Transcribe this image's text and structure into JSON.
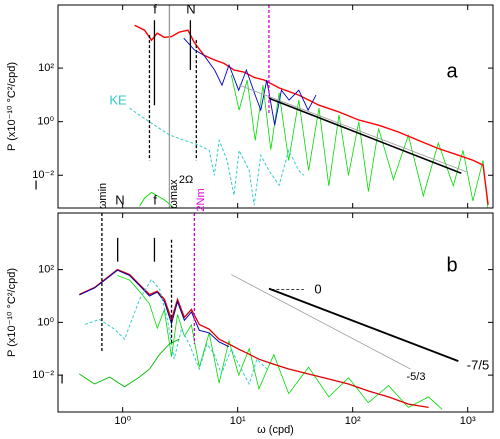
{
  "chart_data": [
    {
      "type": "line",
      "log_x": true,
      "log_y": true,
      "ylabel": "P (x10⁻¹⁰ °C²/cpd)",
      "xlim": [
        0.274,
        1660
      ],
      "ylim": [
        0.0006,
        22600
      ],
      "xticks": [
        1,
        10,
        100,
        1000
      ],
      "yticks": [
        {
          "value": 100,
          "label": "10²"
        },
        {
          "value": 1,
          "label": "10⁰"
        },
        {
          "value": 0.01,
          "label": "10⁻²"
        }
      ],
      "annotations": [
        "f",
        "N",
        "a",
        "KE",
        "I"
      ],
      "series": [
        {
          "color": "#00dd00",
          "width": 0.8,
          "dash": false,
          "x": [
            8.8,
            10.3,
            12.1,
            14.2,
            16.6,
            19.4,
            22.9,
            27.8,
            34,
            41.4,
            51,
            62,
            76,
            92,
            113,
            137,
            168,
            226,
            305,
            411,
            555,
            750,
            910,
            1110,
            1360,
            1500
          ],
          "values": [
            55,
            2.7,
            36,
            0.2,
            23,
            0.09,
            12,
            0.036,
            6.4,
            0.015,
            3.2,
            0.004,
            1.8,
            0.01,
            1.0,
            0.0025,
            0.55,
            0.007,
            0.31,
            0.0017,
            0.16,
            0.004,
            0.085,
            0.0011,
            0.036,
            0.0006
          ]
        },
        {
          "color": "#ff0000",
          "width": 1.4,
          "dash": false,
          "x": [
            1.27,
            1.55,
            1.78,
            2.0,
            2.3,
            2.66,
            3.1,
            3.7,
            4.2,
            5.1,
            6.3,
            7.6,
            9.3,
            11.4,
            13.9,
            17,
            23,
            34,
            51,
            76,
            113,
            168,
            250,
            373,
            555,
            828,
            1116,
            1362,
            1505
          ],
          "values": [
            4000,
            2600,
            1100,
            2000,
            1400,
            1500,
            2200,
            2600,
            900,
            300,
            200,
            150,
            85,
            70,
            45,
            36,
            18,
            9.8,
            4.1,
            2.3,
            1.15,
            0.74,
            0.41,
            0.2,
            0.1,
            0.056,
            0.036,
            0.024,
            0.0008
          ]
        },
        {
          "color": "#0000cc",
          "width": 0.9,
          "dash": false,
          "x": [
            3.4,
            4.2,
            5.1,
            6.3,
            7.3,
            8.4,
            10.2,
            11.9,
            14.2,
            15.9,
            17.9,
            21,
            24,
            28,
            34,
            41,
            48
          ],
          "values": [
            1300,
            480,
            300,
            85,
            23,
            130,
            15,
            85,
            9.8,
            2.7,
            36,
            0.74,
            15,
            6.4,
            15,
            2.7,
            9.8
          ]
        },
        {
          "color": "#33cccc",
          "width": 1,
          "dash": true,
          "x": [
            1.15,
            1.4,
            1.89,
            2.55,
            3.44,
            4.64,
            5.66,
            6.26,
            6.91,
            8.1,
            9.3,
            10.3,
            12.6,
            13.9,
            15.9,
            18.7,
            22.9,
            27.8,
            34,
            37.6
          ],
          "values": [
            3.2,
            1.75,
            0.74,
            0.32,
            0.2,
            0.13,
            0.085,
            0.01,
            0.2,
            0.036,
            0.0018,
            0.085,
            0.015,
            0.00076,
            0.056,
            0.015,
            0.0043,
            0.085,
            0.015,
            0.01
          ]
        },
        {
          "color": "#00dd00",
          "width": 0.9,
          "dash": false,
          "x": [
            1.4,
            1.55,
            1.78,
            2.3,
            2.8
          ],
          "values": [
            0.0007,
            0.0014,
            0.0023,
            0.0012,
            0.0006
          ]
        }
      ],
      "vlines": [
        {
          "x": 1.71,
          "y": [
            1700,
            0.036
          ],
          "color": "#000000",
          "dash": true
        },
        {
          "x": 1.89,
          "y": [
            6100,
            4.1
          ],
          "color": "#000000",
          "dash": false
        },
        {
          "x": 2.55,
          "y": [
            22600,
            0.0006
          ],
          "color": "#999999",
          "dash": false
        },
        {
          "x": 3.88,
          "y": [
            6100,
            85
          ],
          "color": "#000000",
          "dash": false
        },
        {
          "x": 4.37,
          "y": [
            1100,
            0.036
          ],
          "color": "#000000",
          "dash": true
        },
        {
          "x": 18.7,
          "y": [
            22600,
            1.75
          ],
          "color": "#dd00dd",
          "dash": true
        }
      ],
      "lines": [
        {
          "x": [
            10.3,
            1000
          ],
          "y": [
            23,
            0.013
          ],
          "color": "#999999",
          "width": 0.8
        },
        {
          "x": [
            18.7,
            880
          ],
          "y": [
            7.5,
            0.0119
          ],
          "color": "#000000",
          "width": 1.6
        }
      ]
    },
    {
      "type": "line",
      "log_x": true,
      "log_y": true,
      "ylabel": "P (x10⁻¹⁰ °C²/cpd)",
      "xlabel": "ω (cpd)",
      "xlim": [
        0.274,
        1660
      ],
      "ylim": [
        0.0004,
        14000
      ],
      "xticks": [
        {
          "value": 1,
          "label": "10⁰"
        },
        {
          "value": 10,
          "label": "10¹"
        },
        {
          "value": 100,
          "label": "10²"
        },
        {
          "value": 1000,
          "label": "10³"
        }
      ],
      "yticks": [
        {
          "value": 100,
          "label": "10²"
        },
        {
          "value": 1,
          "label": "10⁰"
        },
        {
          "value": 0.01,
          "label": "10⁻²"
        }
      ],
      "annotations": [
        "ωmin",
        "N",
        "f",
        "ωmax",
        "2Ω",
        "2Nm",
        "b",
        "0",
        "-5/3",
        "-7/5",
        "I"
      ],
      "series": [
        {
          "color": "#00dd00",
          "width": 0.8,
          "dash": false,
          "x": [
            0.9,
            1.15,
            1.4,
            1.71,
            2.0,
            2.3,
            2.66,
            3.0,
            3.44,
            3.96,
            4.64,
            5.66,
            6.9,
            8.4,
            10.2,
            12.6,
            15.3,
            20.6,
            27.8,
            41.4,
            62,
            92,
            137,
            205,
            305,
            457,
            600
          ],
          "values": [
            60,
            40,
            15,
            5,
            0.6,
            3,
            0.05,
            2,
            0.3,
            0.8,
            0.02,
            0.4,
            0.005,
            0.2,
            0.01,
            0.1,
            0.003,
            0.06,
            0.002,
            0.02,
            0.0015,
            0.008,
            0.0009,
            0.004,
            0.0006,
            0.0015,
            0.0005
          ]
        },
        {
          "color": "#dd0000",
          "width": 1.3,
          "dash": false,
          "x": [
            0.42,
            0.57,
            0.7,
            0.9,
            1.15,
            1.4,
            1.71,
            2.0,
            2.31,
            2.66,
            3.0,
            3.44,
            3.96,
            4.64,
            5.66,
            6.9,
            8.4,
            10.2,
            12.6,
            15.3,
            20.6,
            27.8,
            41.4,
            62,
            92,
            137,
            205,
            305,
            457
          ],
          "values": [
            11.4,
            21,
            42,
            100,
            65,
            27,
            11.4,
            15,
            7.4,
            1.3,
            7.4,
            1.55,
            3.1,
            0.83,
            0.55,
            0.23,
            0.15,
            0.096,
            0.062,
            0.04,
            0.026,
            0.017,
            0.011,
            0.0071,
            0.0046,
            0.0025,
            0.0015,
            0.0008,
            0.0006
          ]
        },
        {
          "color": "#0000aa",
          "width": 1,
          "dash": false,
          "x": [
            0.42,
            0.57,
            0.7,
            0.9,
            1.15,
            1.4,
            1.71,
            2.0,
            2.31,
            2.66,
            3.0,
            3.44,
            3.96,
            4.64,
            5.66,
            6.9,
            8.4
          ],
          "values": [
            11,
            20,
            40,
            95,
            60,
            25,
            10,
            14,
            6,
            0.9,
            6,
            1.2,
            2.5,
            0.5,
            0.4,
            0.18,
            0.12
          ]
        },
        {
          "color": "#33cccc",
          "width": 1,
          "dash": true,
          "x": [
            0.47,
            0.63,
            0.85,
            1.04,
            1.4,
            1.78,
            2.1,
            2.45,
            2.8,
            3.24,
            3.8,
            4.64,
            5.4,
            6.26,
            7.2,
            8.8,
            10.2,
            12.6,
            14.7,
            18
          ],
          "values": [
            0.84,
            1.3,
            0.55,
            0.23,
            7.4,
            42,
            17.6,
            1.3,
            0.04,
            0.55,
            0.15,
            0.017,
            0.15,
            0.062,
            0.011,
            0.096,
            0.026,
            0.0046,
            0.04,
            0.017
          ]
        },
        {
          "color": "#00bb00",
          "width": 0.9,
          "dash": false,
          "x": [
            0.42,
            0.57,
            0.77,
            1.04,
            1.4,
            1.71,
            2.1,
            2.55,
            3.1
          ],
          "values": [
            0.011,
            0.0046,
            0.0085,
            0.0036,
            0.0085,
            0.017,
            0.062,
            0.15,
            0.23
          ]
        }
      ],
      "vlines": [
        {
          "x": 0.66,
          "y": [
            14000,
            0.081
          ],
          "color": "#000000",
          "dash": true
        },
        {
          "x": 0.905,
          "y": [
            1600,
            200
          ],
          "color": "#000000",
          "dash": false
        },
        {
          "x": 1.89,
          "y": [
            1600,
            200
          ],
          "color": "#000000",
          "dash": false
        },
        {
          "x": 2.66,
          "y": [
            1350,
            0.15
          ],
          "color": "#000000",
          "dash": true
        },
        {
          "x": 4.2,
          "y": [
            14000,
            0.15
          ],
          "color": "#dd00dd",
          "dash": true
        }
      ],
      "lines": [
        {
          "x": [
            8.8,
            318
          ],
          "y": [
            65,
            0.017
          ],
          "color": "#999999",
          "width": 0.8
        },
        {
          "x": [
            18.7,
            830
          ],
          "y": [
            19,
            0.034
          ],
          "color": "#000000",
          "width": 1.8
        },
        {
          "x": [
            19.6,
            37.6
          ],
          "y": [
            17.6,
            17.6
          ],
          "color": "#000000",
          "width": 0.8,
          "dash": true
        }
      ]
    }
  ]
}
